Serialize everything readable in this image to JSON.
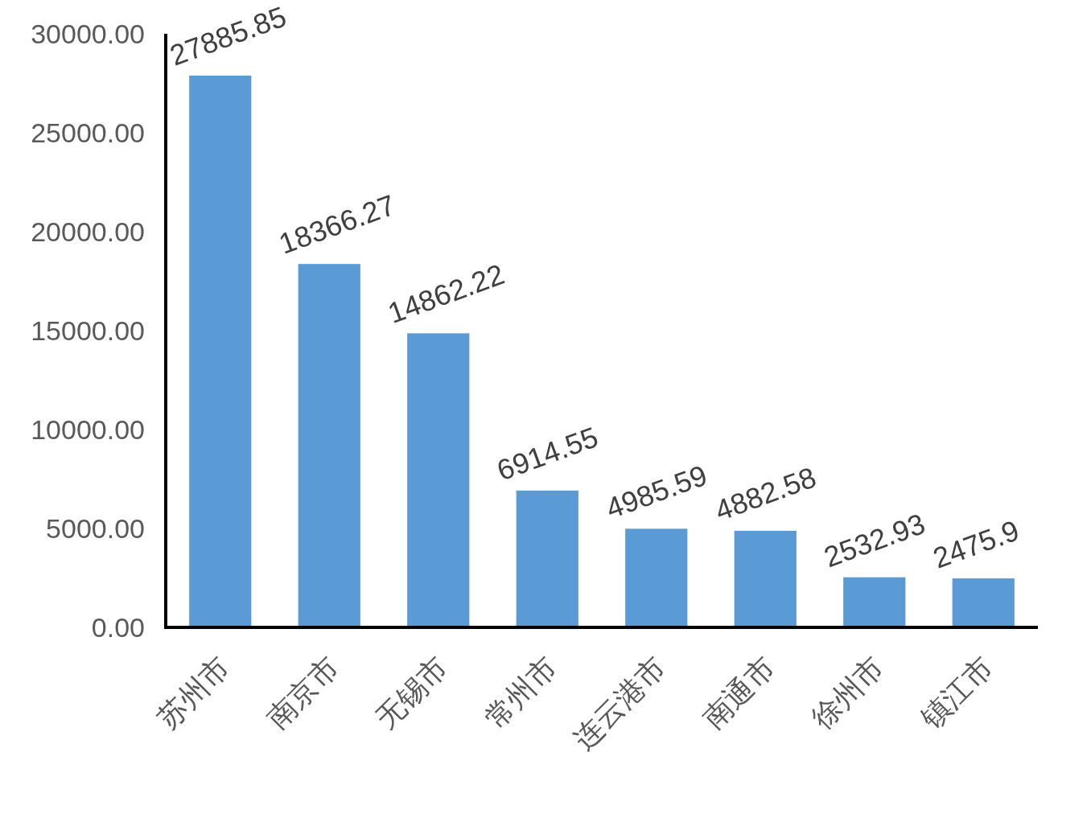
{
  "chart_data": {
    "type": "bar",
    "categories": [
      "苏州市",
      "南京市",
      "无锡市",
      "常州市",
      "连云港市",
      "南通市",
      "徐州市",
      "镇江市"
    ],
    "values": [
      27885.85,
      18366.27,
      14862.22,
      6914.55,
      4985.59,
      4882.58,
      2532.93,
      2475.9
    ],
    "color": "#5b9bd5",
    "ylim": [
      0,
      30000
    ],
    "yticks": [
      {
        "value": 0,
        "label": "0.00"
      },
      {
        "value": 5000,
        "label": "5000.00"
      },
      {
        "value": 10000,
        "label": "10000.00"
      },
      {
        "value": 15000,
        "label": "15000.00"
      },
      {
        "value": 20000,
        "label": "20000.00"
      },
      {
        "value": 25000,
        "label": "25000.00"
      },
      {
        "value": 30000,
        "label": "30000.00"
      }
    ],
    "data_labels": true
  }
}
